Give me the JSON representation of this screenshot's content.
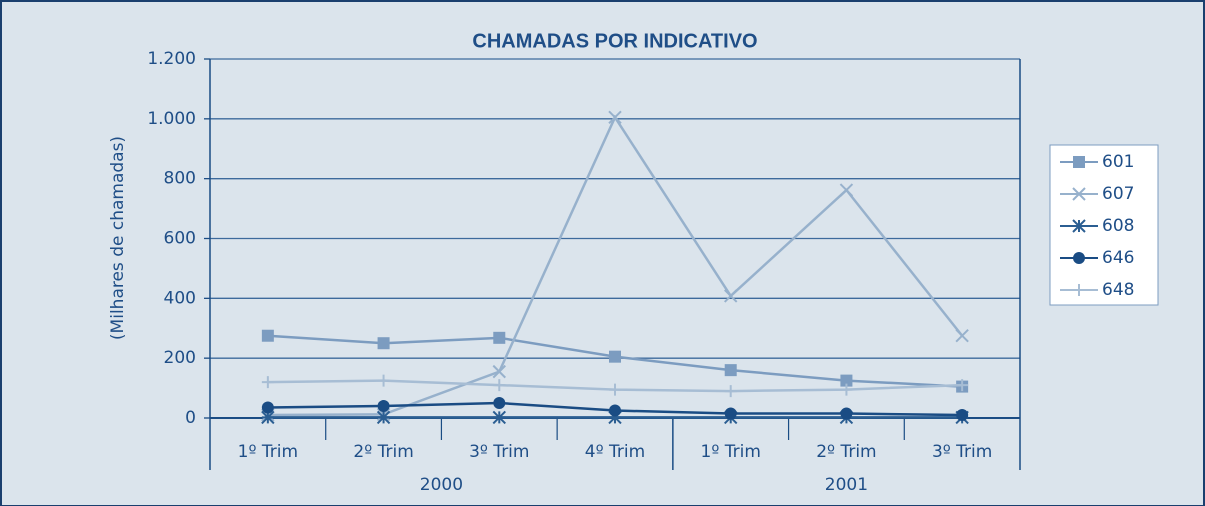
{
  "chart_data": {
    "type": "line",
    "title": "CHAMADAS POR INDICATIVO",
    "y_label": "(Milhares de chamadas)",
    "groups": [
      {
        "label": "2000",
        "categories": [
          "1º Trim",
          "2º Trim",
          "3º Trim",
          "4º Trim"
        ]
      },
      {
        "label": "2001",
        "categories": [
          "1º Trim",
          "2º Trim",
          "3º Trim"
        ]
      }
    ],
    "series": [
      {
        "name": "601",
        "color": "#7c9cc0",
        "marker": "square",
        "values": [
          275,
          250,
          268,
          205,
          160,
          125,
          105
        ]
      },
      {
        "name": "607",
        "color": "#97b1cc",
        "marker": "x",
        "values": [
          10,
          12,
          155,
          1005,
          408,
          762,
          275
        ]
      },
      {
        "name": "608",
        "color": "#2b5e92",
        "marker": "asterisk",
        "values": [
          2,
          2,
          2,
          2,
          2,
          2,
          2
        ]
      },
      {
        "name": "646",
        "color": "#1a4c84",
        "marker": "circle",
        "values": [
          35,
          40,
          50,
          25,
          15,
          15,
          10
        ]
      },
      {
        "name": "648",
        "color": "#a7bdd4",
        "marker": "plus",
        "values": [
          120,
          125,
          110,
          95,
          90,
          95,
          110
        ]
      }
    ],
    "ylim": [
      0,
      1200
    ],
    "yticks": [
      0,
      200,
      400,
      600,
      800,
      {
        "value": 1000,
        "label": "1.000"
      },
      {
        "value": 1200,
        "label": "1.200"
      }
    ],
    "grid": true,
    "legend": "right"
  }
}
